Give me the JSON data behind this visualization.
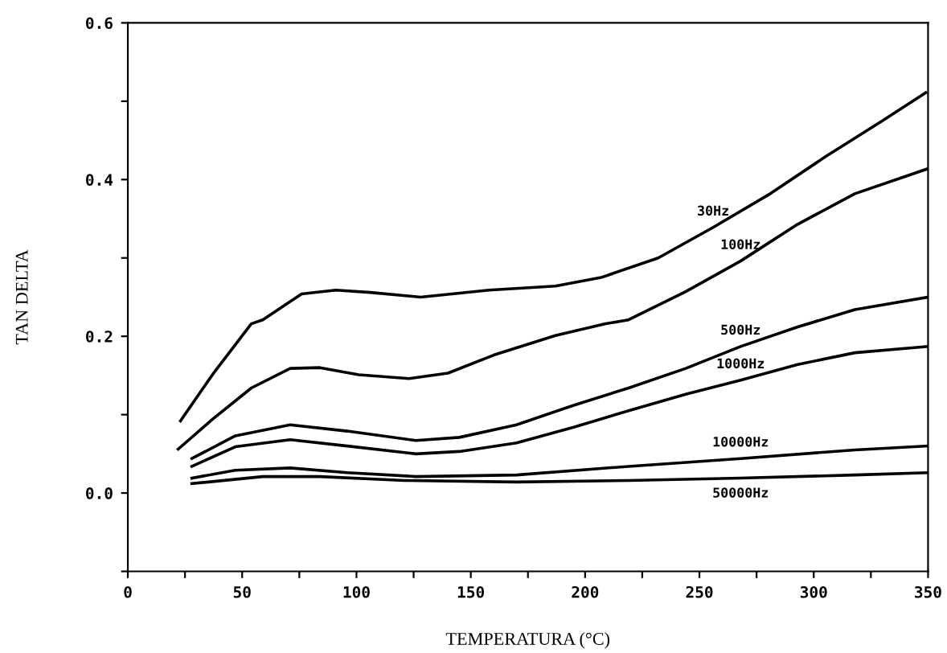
{
  "chart_data": {
    "type": "line",
    "xlabel": "TEMPERATURA (°C)",
    "ylabel": "TAN DELTA",
    "xlim": [
      0,
      350
    ],
    "ylim": [
      -0.1,
      0.6
    ],
    "xticks": [
      0,
      {
        "value": 25,
        "label": null
      },
      50,
      {
        "value": 75,
        "label": null
      },
      100,
      {
        "value": 125,
        "label": null
      },
      150,
      {
        "value": 175,
        "label": null
      },
      200,
      {
        "value": 225,
        "label": null
      },
      250,
      {
        "value": 275,
        "label": null
      },
      300,
      {
        "value": 325,
        "label": null
      },
      350
    ],
    "yticks": [
      {
        "value": -0.1,
        "label": null
      },
      {
        "value": 0.0,
        "label": "0.0"
      },
      {
        "value": 0.1,
        "label": null
      },
      {
        "value": 0.2,
        "label": "0.2"
      },
      {
        "value": 0.3,
        "label": null
      },
      {
        "value": 0.4,
        "label": "0.4"
      },
      {
        "value": 0.5,
        "label": null
      },
      {
        "value": 0.6,
        "label": "0.6"
      }
    ],
    "grid": false,
    "marker": "none",
    "line_style": "solid",
    "series": [
      {
        "name": "30Hz",
        "color": "#000000",
        "x": [
          23,
          37,
          54,
          59,
          76,
          91,
          106,
          128,
          158,
          187,
          207,
          232,
          256,
          281,
          305,
          330,
          349
        ],
        "values": [
          0.092,
          0.151,
          0.216,
          0.221,
          0.254,
          0.259,
          0.256,
          0.25,
          0.259,
          0.264,
          0.275,
          0.3,
          0.339,
          0.382,
          0.429,
          0.475,
          0.511
        ]
      },
      {
        "name": "100Hz",
        "color": "#000000",
        "x": [
          22,
          37,
          54,
          71,
          84,
          101,
          123,
          140,
          160,
          187,
          209,
          219,
          244,
          268,
          293,
          318,
          350
        ],
        "values": [
          0.056,
          0.094,
          0.134,
          0.159,
          0.16,
          0.151,
          0.146,
          0.153,
          0.176,
          0.201,
          0.216,
          0.221,
          0.257,
          0.296,
          0.343,
          0.382,
          0.414
        ]
      },
      {
        "name": "500Hz",
        "color": "#000000",
        "x": [
          28,
          47,
          71,
          96,
          126,
          145,
          170,
          195,
          219,
          244,
          268,
          293,
          318,
          350
        ],
        "values": [
          0.044,
          0.073,
          0.087,
          0.079,
          0.067,
          0.071,
          0.087,
          0.112,
          0.134,
          0.159,
          0.187,
          0.212,
          0.234,
          0.25
        ]
      },
      {
        "name": "1000Hz",
        "color": "#000000",
        "x": [
          28,
          47,
          71,
          96,
          126,
          145,
          170,
          195,
          219,
          244,
          268,
          293,
          318,
          350
        ],
        "values": [
          0.034,
          0.059,
          0.068,
          0.06,
          0.05,
          0.053,
          0.064,
          0.084,
          0.105,
          0.126,
          0.144,
          0.164,
          0.179,
          0.187
        ]
      },
      {
        "name": "10000Hz",
        "color": "#000000",
        "x": [
          28,
          47,
          71,
          96,
          126,
          170,
          219,
          268,
          318,
          350
        ],
        "values": [
          0.019,
          0.029,
          0.032,
          0.026,
          0.021,
          0.023,
          0.034,
          0.044,
          0.055,
          0.06
        ]
      },
      {
        "name": "50000Hz",
        "color": "#000000",
        "x": [
          28,
          59,
          84,
          121,
          170,
          219,
          268,
          318,
          350
        ],
        "values": [
          0.012,
          0.021,
          0.021,
          0.016,
          0.014,
          0.016,
          0.019,
          0.023,
          0.026
        ]
      }
    ]
  }
}
